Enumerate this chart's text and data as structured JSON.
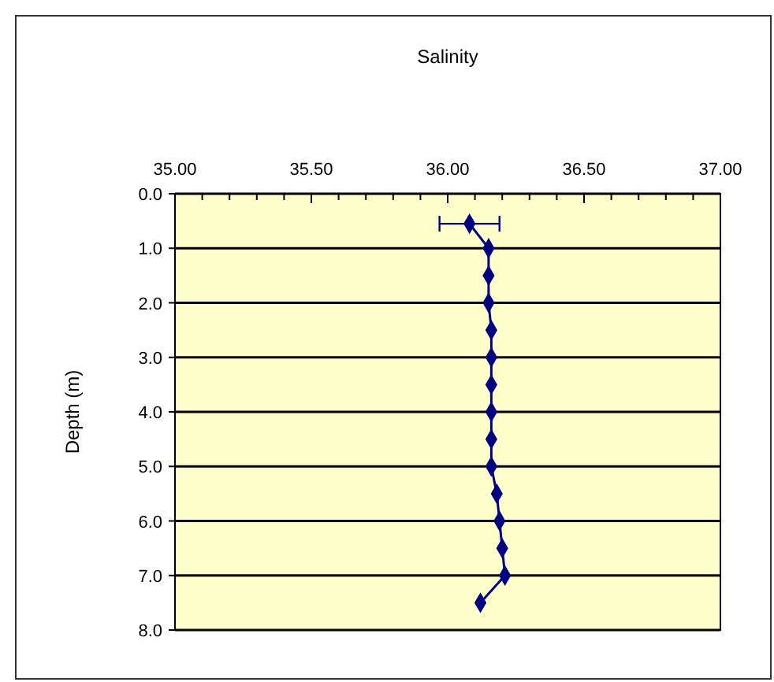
{
  "chart_data": {
    "type": "line",
    "title": "Salinity",
    "ylabel": "Depth (m)",
    "series": [
      {
        "color": "#000080",
        "x": [
          36.08,
          36.15,
          36.15,
          36.15,
          36.16,
          36.16,
          36.16,
          36.16,
          36.16,
          36.16,
          36.18,
          36.19,
          36.2,
          36.21,
          36.12
        ],
        "values": [
          0.55,
          1.0,
          1.5,
          2.0,
          2.5,
          3.0,
          3.5,
          4.0,
          4.5,
          5.0,
          5.5,
          6.0,
          6.5,
          7.0,
          7.5
        ],
        "xerrors": [
          0.11,
          null,
          null,
          null,
          null,
          null,
          null,
          null,
          null,
          null,
          null,
          null,
          null,
          null,
          null
        ]
      }
    ],
    "xlim": [
      35,
      37
    ],
    "xticks": [
      {
        "value": 35,
        "label": "35.00"
      },
      {
        "value": 35.1,
        "label": null
      },
      {
        "value": 35.2,
        "label": null
      },
      {
        "value": 35.3,
        "label": null
      },
      {
        "value": 35.4,
        "label": null
      },
      {
        "value": 35.5,
        "label": "35.50"
      },
      {
        "value": 35.6,
        "label": null
      },
      {
        "value": 35.7,
        "label": null
      },
      {
        "value": 35.8,
        "label": null
      },
      {
        "value": 35.9,
        "label": null
      },
      {
        "value": 36,
        "label": "36.00"
      },
      {
        "value": 36.1,
        "label": null
      },
      {
        "value": 36.2,
        "label": null
      },
      {
        "value": 36.3,
        "label": null
      },
      {
        "value": 36.4,
        "label": null
      },
      {
        "value": 36.5,
        "label": "36.50"
      },
      {
        "value": 36.6,
        "label": null
      },
      {
        "value": 36.7,
        "label": null
      },
      {
        "value": 36.8,
        "label": null
      },
      {
        "value": 36.9,
        "label": null
      },
      {
        "value": 37,
        "label": "37.00"
      }
    ],
    "ylim": [
      8,
      0
    ],
    "yticks": [
      {
        "value": 0,
        "label": "0.0"
      },
      {
        "value": 1,
        "label": "1.0"
      },
      {
        "value": 2,
        "label": "2.0"
      },
      {
        "value": 3,
        "label": "3.0"
      },
      {
        "value": 4,
        "label": "4.0"
      },
      {
        "value": 5,
        "label": "5.0"
      },
      {
        "value": 6,
        "label": "6.0"
      },
      {
        "value": 7,
        "label": "7.0"
      },
      {
        "value": 8,
        "label": "8.0"
      }
    ],
    "grid": "y",
    "marker": "diamond",
    "line_style": "solid"
  }
}
